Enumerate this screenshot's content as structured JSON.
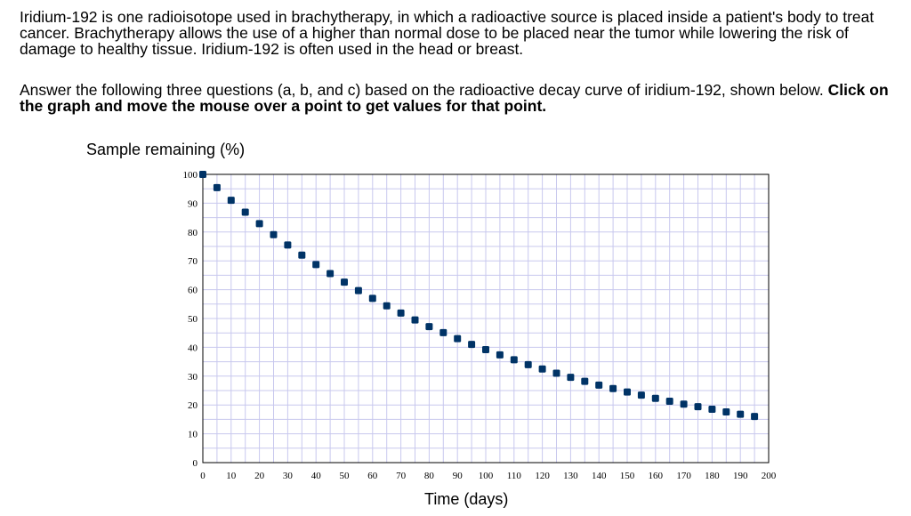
{
  "intro_text": "Iridium-192 is one radioisotope used in brachytherapy, in which a radioactive source is placed inside a patient's body to treat cancer. Brachytherapy allows the use of a higher than normal dose to be placed near the tumor while lowering the risk of damage to healthy tissue. Iridium-192 is often used in the head or breast.",
  "instructions": {
    "text": "Answer the following three questions (a, b, and c) based on the radioactive decay curve of iridium-192, shown below.",
    "bold_text": "Click on the graph and move the mouse over a point to get values for that point."
  },
  "chart_data": {
    "type": "scatter",
    "title": "",
    "xlabel": "Time (days)",
    "ylabel": "Sample remaining (%)",
    "xlim": [
      0,
      200
    ],
    "ylim": [
      0,
      100
    ],
    "grid": true,
    "x_ticks": [
      0,
      10,
      20,
      30,
      40,
      50,
      60,
      70,
      80,
      90,
      100,
      110,
      120,
      130,
      140,
      150,
      160,
      170,
      180,
      190,
      200
    ],
    "y_ticks": [
      0,
      10,
      20,
      30,
      40,
      50,
      60,
      70,
      80,
      90,
      100
    ],
    "marker_color": "#003366",
    "grid_color": "#c8c8ee",
    "x": [
      0,
      5,
      10,
      15,
      20,
      25,
      30,
      35,
      40,
      45,
      50,
      55,
      60,
      65,
      70,
      75,
      80,
      85,
      90,
      95,
      100,
      105,
      110,
      115,
      120,
      125,
      130,
      135,
      140,
      145,
      150,
      155,
      160,
      165,
      170,
      175,
      180,
      185,
      190,
      195
    ],
    "y": [
      100,
      95.4,
      91,
      86.9,
      82.9,
      79.1,
      75.5,
      72,
      68.7,
      65.6,
      62.6,
      59.7,
      57,
      54.4,
      51.9,
      49.5,
      47.2,
      45.1,
      43,
      41,
      39.2,
      37.4,
      35.7,
      34,
      32.5,
      31,
      29.6,
      28.2,
      26.9,
      25.7,
      24.5,
      23.4,
      22.3,
      21.3,
      20.3,
      19.4,
      18.5,
      17.6,
      16.8,
      16
    ]
  }
}
